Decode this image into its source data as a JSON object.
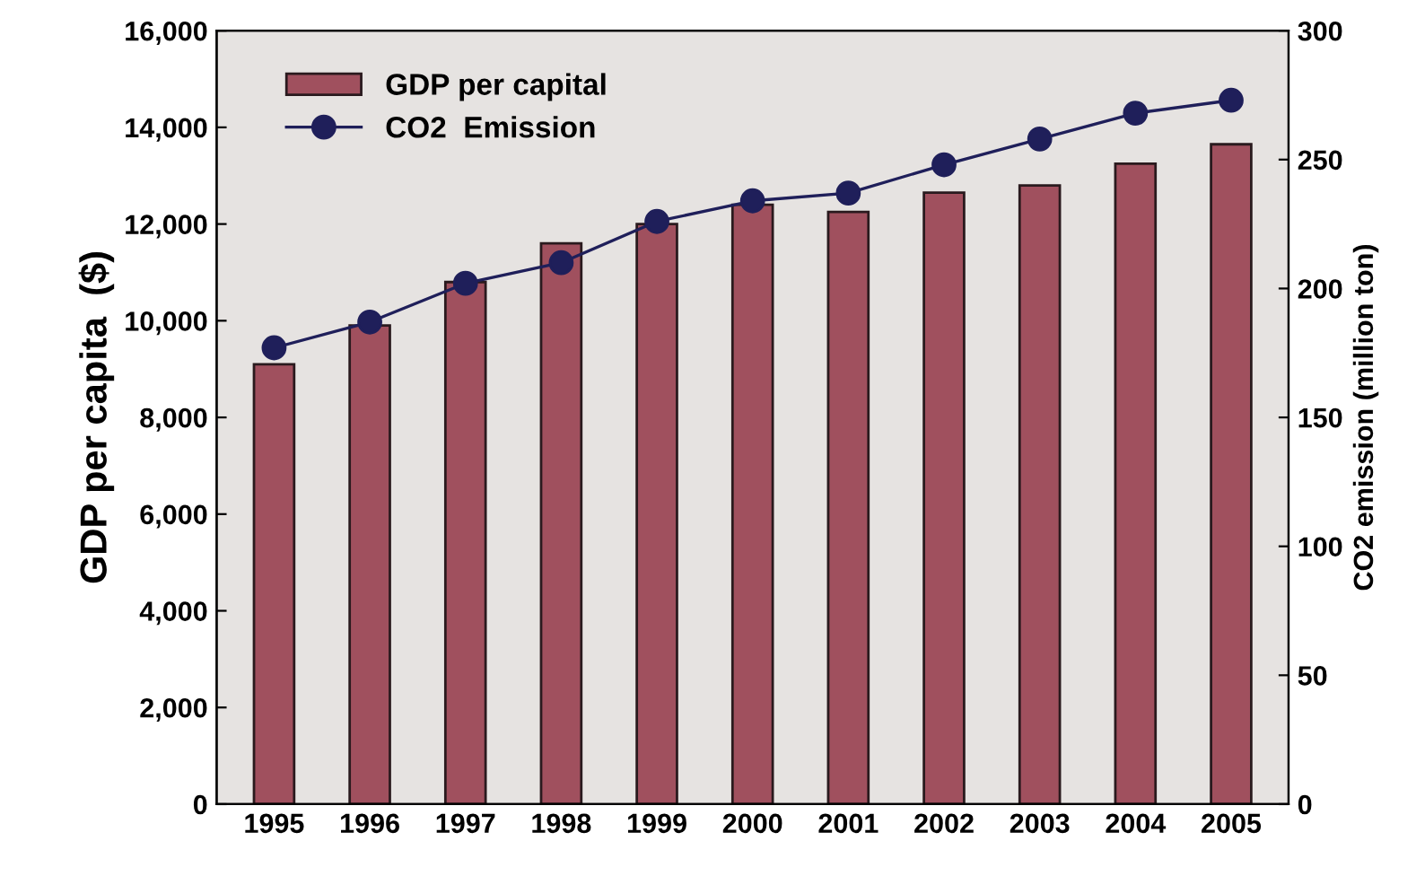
{
  "chart_data": {
    "type": "bar",
    "categories": [
      "1995",
      "1996",
      "1997",
      "1998",
      "1999",
      "2000",
      "2001",
      "2002",
      "2003",
      "2004",
      "2005"
    ],
    "series": [
      {
        "name": "GDP per capital",
        "color": "#a0505e",
        "values": [
          9100,
          9900,
          10800,
          11600,
          12000,
          12400,
          12250,
          12650,
          12800,
          13250,
          13650
        ]
      },
      {
        "name": "CO2  Emission",
        "type": "line",
        "axis": "y2",
        "color": "#1f1f5a",
        "marker": "circle",
        "values": [
          177,
          187,
          202,
          210,
          226,
          234,
          237,
          248,
          258,
          268,
          273
        ]
      }
    ],
    "ylabel": "GDP per capita  ($)",
    "y2label": "CO2 emission (million ton)",
    "ylim": [
      0,
      16000
    ],
    "yticks": [
      {
        "value": 0,
        "label": "0"
      },
      {
        "value": 2000,
        "label": "2,000"
      },
      {
        "value": 4000,
        "label": "4,000"
      },
      {
        "value": 6000,
        "label": "6,000"
      },
      {
        "value": 8000,
        "label": "8,000"
      },
      {
        "value": 10000,
        "label": "10,000"
      },
      {
        "value": 12000,
        "label": "12,000"
      },
      {
        "value": 14000,
        "label": "14,000"
      },
      {
        "value": 16000,
        "label": "16,000"
      }
    ],
    "y2lim": [
      0,
      300
    ],
    "y2ticks": [
      0,
      50,
      100,
      150,
      200,
      250,
      300
    ],
    "legend": "top left",
    "grid": false
  }
}
